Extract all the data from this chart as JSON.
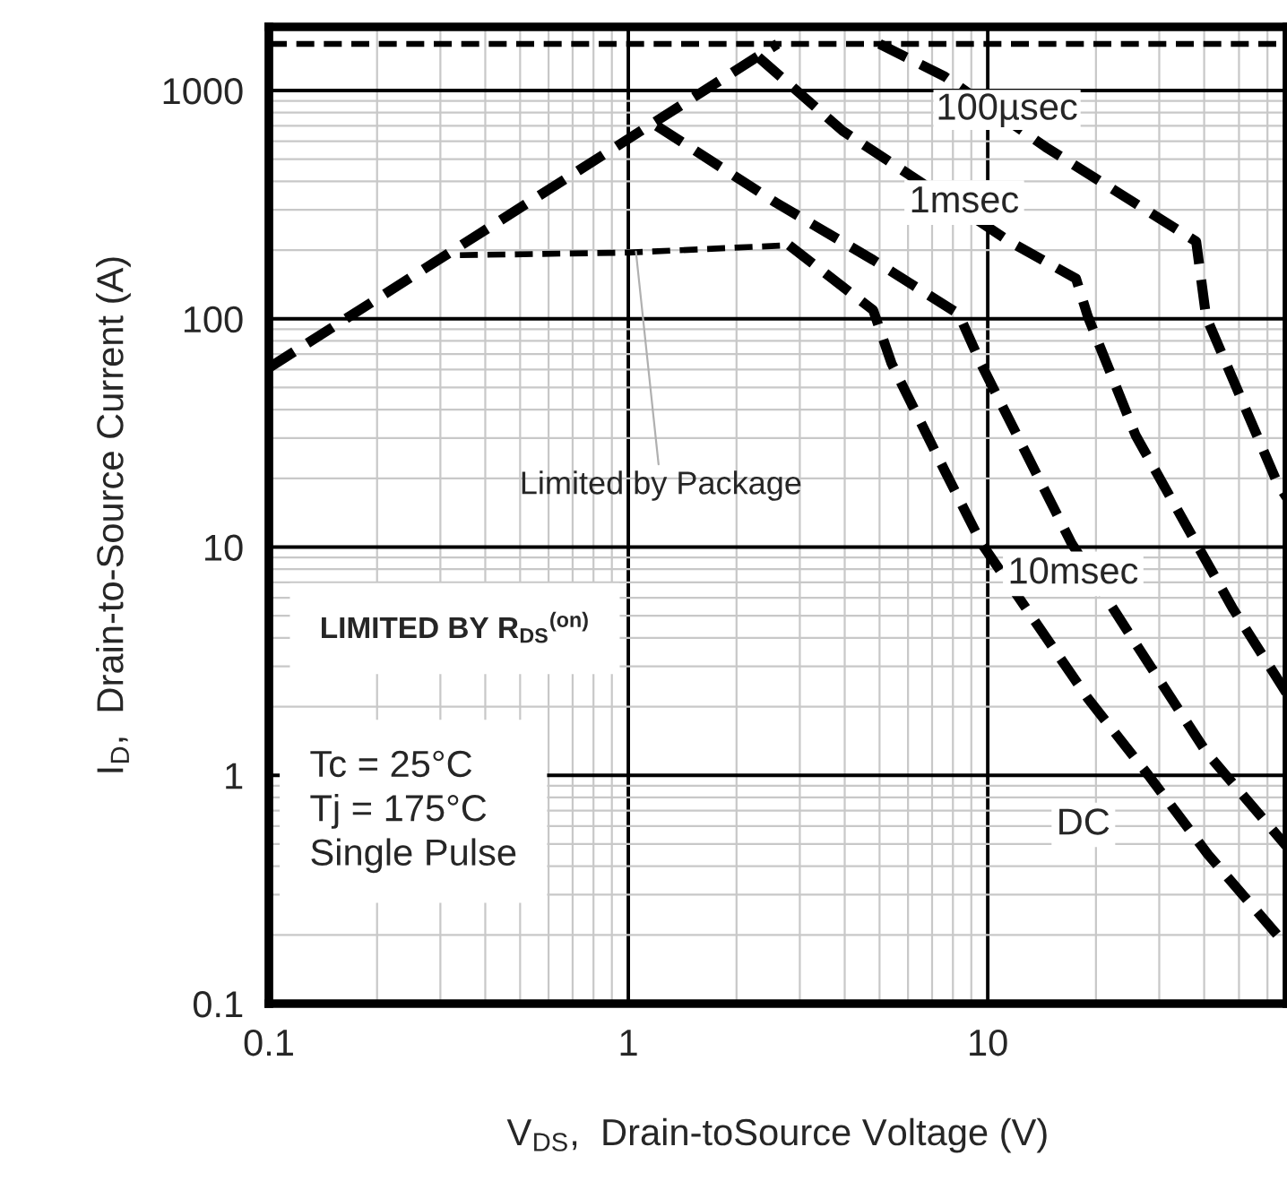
{
  "chart_data": {
    "type": "line",
    "xlabel": "V$_{DS}$,  Drain-toSource Voltage (V)",
    "ylabel": "I$_{D}$,  Drain-to-Source Current (A)",
    "log": "xy",
    "grid": true,
    "line_style": "dashed",
    "marker": "none",
    "xlim": [
      0.1,
      68
    ],
    "ylim": [
      0.1,
      1900
    ],
    "xticks": [
      0.1,
      1,
      10
    ],
    "yticks": [
      0.1,
      1,
      10,
      100,
      1000
    ],
    "series": [
      {
        "color": "#000000",
        "x": [
          0.1,
          2.6
        ],
        "values": [
          61,
          1600
        ]
      },
      {
        "color": "#000000",
        "x": [
          0.34,
          1,
          2.8
        ],
        "values": [
          190,
          195,
          210
        ]
      },
      {
        "color": "#000000",
        "x": [
          5.0,
          7.6,
          14.5,
          38,
          40.5,
          64,
          68
        ],
        "values": [
          1600,
          1150,
          565,
          218,
          102,
          19,
          16.4
        ]
      },
      {
        "color": "#000000",
        "x": [
          2.3,
          3.95,
          6.5,
          11.5,
          17.6,
          19,
          25.8,
          38,
          48,
          67.7
        ],
        "values": [
          1400,
          665,
          397,
          218,
          150,
          102,
          30.8,
          10.4,
          5.4,
          2.3
        ]
      },
      {
        "color": "#000000",
        "x": [
          1.2,
          2.57,
          4.8,
          8.3,
          9.6,
          17.1,
          24,
          40.6,
          67.7
        ],
        "values": [
          700,
          323,
          181,
          105,
          63,
          10.4,
          4.5,
          1.26,
          0.49
        ]
      },
      {
        "color": "#000000",
        "x": [
          2.8,
          4.8,
          5.4,
          7.6,
          9.6,
          19,
          28,
          41,
          67.7
        ],
        "values": [
          210,
          109,
          63.7,
          21.5,
          10.4,
          2.17,
          1,
          0.45,
          0.18
        ]
      }
    ],
    "ref_lines": [
      {
        "axis": "y",
        "value": 1600,
        "color": "#000000",
        "line_style": "dashed"
      }
    ],
    "annotations": [
      "100µsec",
      "1msec",
      "10msec",
      "DC",
      {
        "text": "Limited by Package",
        "x": 1.05,
        "y": 197
      },
      "LIMITED BY R$_{DS}$$^{(on)}$",
      "Tc = 25°C\nTj = 175°C\nSingle Pulse"
    ]
  }
}
